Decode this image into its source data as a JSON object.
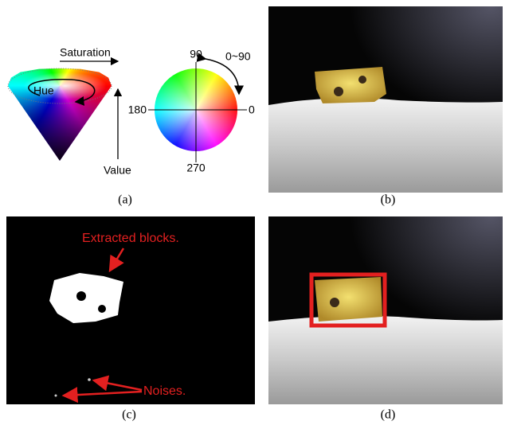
{
  "figure": {
    "panel_a": {
      "saturation": "Saturation",
      "hue": "Hue",
      "value": "Value",
      "angle_90": "90",
      "angle_range": "0~90",
      "angle_180": "180",
      "angle_0": "0",
      "angle_270": "270",
      "label": "(a)"
    },
    "panel_b": {
      "label": "(b)"
    },
    "panel_c": {
      "extracted": "Extracted blocks.",
      "noises": "Noises.",
      "label": "(c)"
    },
    "panel_d": {
      "label": "(d)"
    }
  }
}
